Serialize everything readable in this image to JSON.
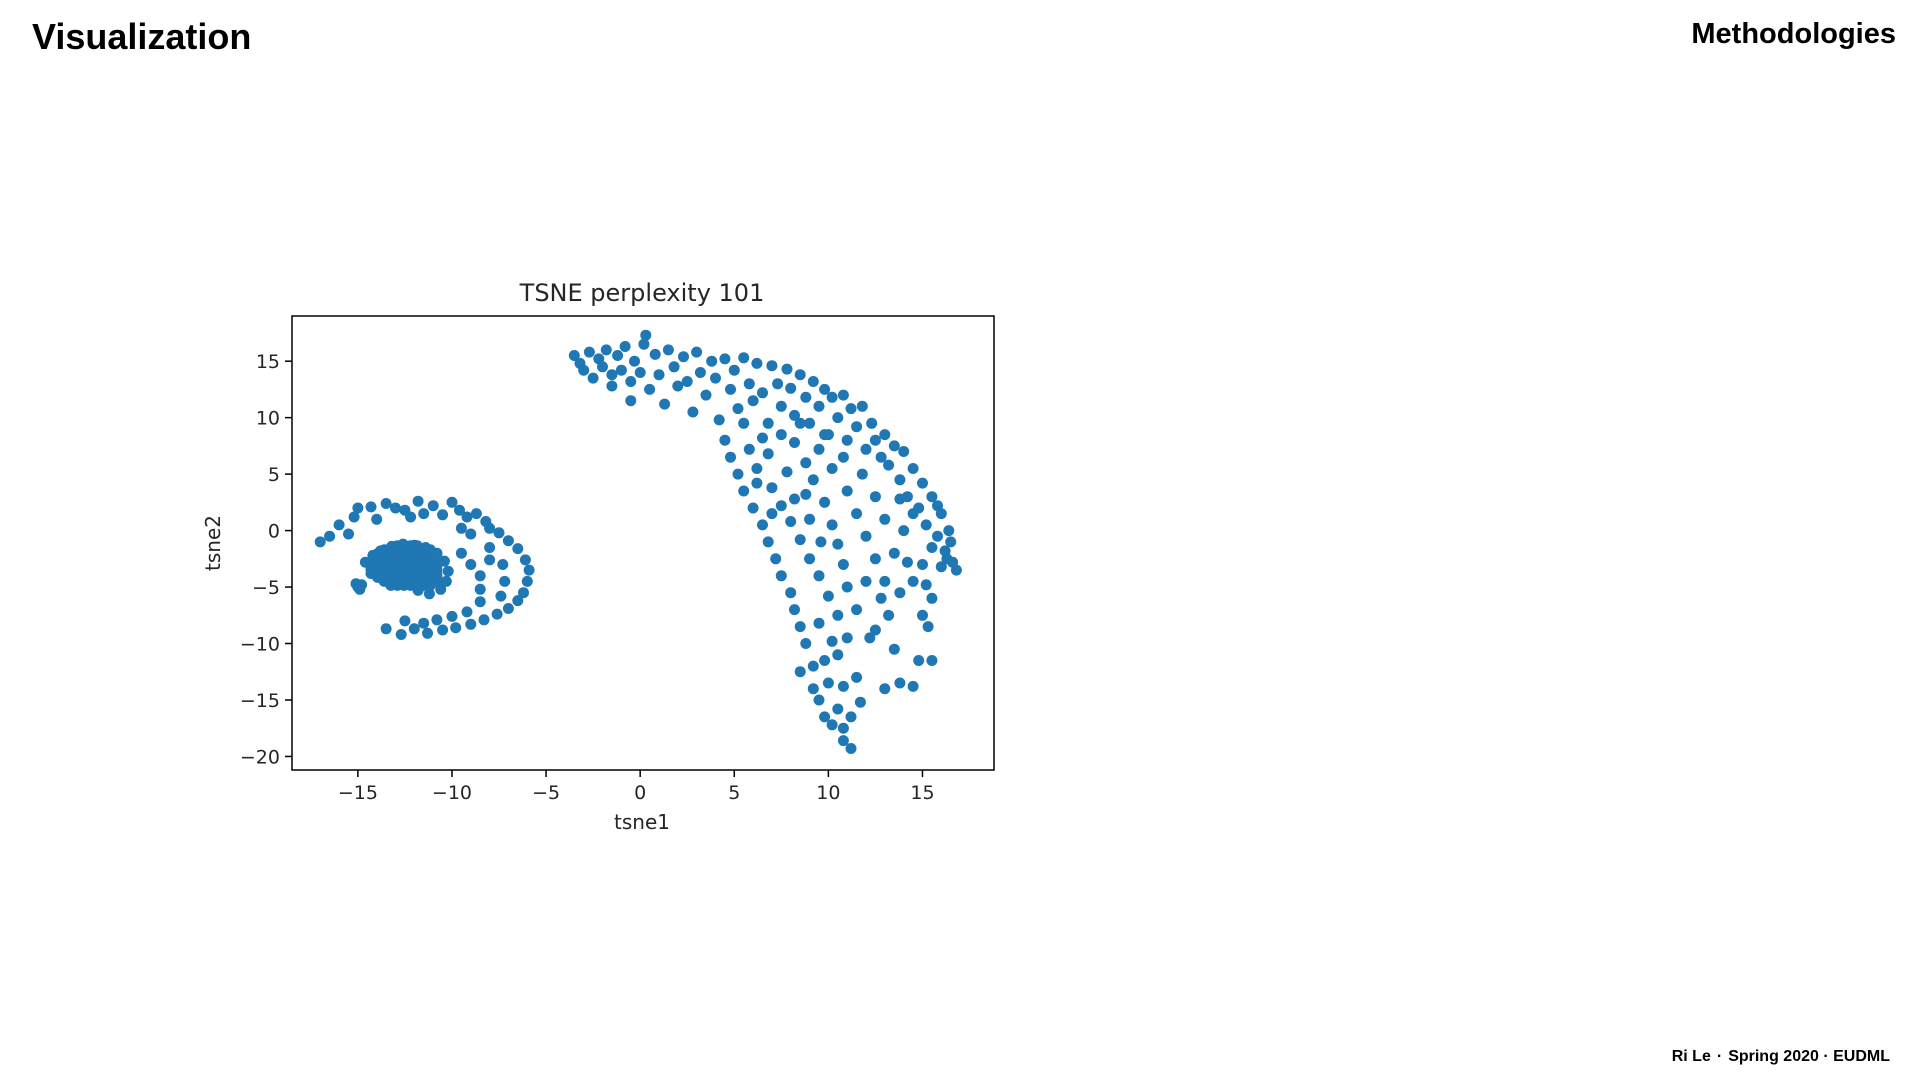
{
  "slide": {
    "title": "Visualization",
    "section": "Methodologies"
  },
  "footer": {
    "author": "Ri Le",
    "separator": "·",
    "term_venue": "Spring 2020 · EUDML"
  },
  "colors": {
    "points": "#1f77b4",
    "axes": "#000000",
    "text": "#262626"
  },
  "chart_data": {
    "type": "scatter",
    "title": "TSNE perplexity 101",
    "xlabel": "tsne1",
    "ylabel": "tsne2",
    "xlim": [
      -18.5,
      18.8
    ],
    "ylim": [
      -21.2,
      19.0
    ],
    "xticks": [
      -15,
      -10,
      -5,
      0,
      5,
      10,
      15
    ],
    "yticks": [
      15,
      10,
      5,
      0,
      -5,
      -10,
      -15,
      -20
    ],
    "xtick_labels": [
      "−15",
      "−10",
      "−5",
      "0",
      "5",
      "10",
      "15"
    ],
    "ytick_labels": [
      "15",
      "10",
      "5",
      "0",
      "−5",
      "−10",
      "−15",
      "−20"
    ],
    "grid": false,
    "legend": "none",
    "series": [
      {
        "points": [
          [
            -17,
            -1
          ],
          [
            -16.5,
            -0.5
          ],
          [
            -16,
            0.5
          ],
          [
            -15.5,
            -0.3
          ],
          [
            -15.2,
            1.2
          ],
          [
            -15,
            2
          ],
          [
            -14.3,
            2.1
          ],
          [
            -14,
            1
          ],
          [
            -13.5,
            2.4
          ],
          [
            -13,
            2
          ],
          [
            -12.5,
            1.8
          ],
          [
            -12.2,
            1.2
          ],
          [
            -11.8,
            2.6
          ],
          [
            -11.5,
            1.5
          ],
          [
            -11,
            2.2
          ],
          [
            -10.5,
            1.4
          ],
          [
            -10,
            2.5
          ],
          [
            -9.6,
            1.8
          ],
          [
            -9.2,
            1.2
          ],
          [
            -8.7,
            1.5
          ],
          [
            -8.2,
            0.8
          ],
          [
            -9.5,
            0.2
          ],
          [
            -9,
            -0.3
          ],
          [
            -8,
            0.2
          ],
          [
            -7.5,
            -0.2
          ],
          [
            -7,
            -0.9
          ],
          [
            -6.5,
            -1.6
          ],
          [
            -6.1,
            -2.6
          ],
          [
            -5.9,
            -3.5
          ],
          [
            -6,
            -4.5
          ],
          [
            -6.2,
            -5.5
          ],
          [
            -6.5,
            -6.2
          ],
          [
            -7,
            -6.9
          ],
          [
            -7.6,
            -7.4
          ],
          [
            -8.3,
            -7.9
          ],
          [
            -9,
            -8.3
          ],
          [
            -9.8,
            -8.6
          ],
          [
            -10.5,
            -8.8
          ],
          [
            -11.3,
            -9.1
          ],
          [
            -12,
            -8.7
          ],
          [
            -12.7,
            -9.2
          ],
          [
            -13.5,
            -8.7
          ],
          [
            -9.5,
            -2
          ],
          [
            -9,
            -3
          ],
          [
            -8.5,
            -4
          ],
          [
            -8.5,
            -5.2
          ],
          [
            -8.5,
            -6.3
          ],
          [
            -9.2,
            -7.2
          ],
          [
            -10,
            -7.6
          ],
          [
            -10.8,
            -7.9
          ],
          [
            -11.5,
            -8.2
          ],
          [
            -12.5,
            -8
          ],
          [
            -8,
            -1.5
          ],
          [
            -7.3,
            -3
          ],
          [
            -7.2,
            -4.5
          ],
          [
            -7.4,
            -5.8
          ],
          [
            -8,
            -2.6
          ],
          [
            -15,
            -5
          ],
          [
            -14.8,
            -4.8
          ],
          [
            -15.1,
            -4.7
          ],
          [
            -14.9,
            -5.2
          ],
          [
            -14.6,
            -2.8
          ],
          [
            -14.2,
            -2.2
          ],
          [
            -13.8,
            -1.8
          ],
          [
            -13.2,
            -1.4
          ],
          [
            -12.6,
            -1.2
          ],
          [
            -12,
            -1.3
          ],
          [
            -11.4,
            -1.5
          ],
          [
            -10.8,
            -2
          ],
          [
            -10.4,
            -2.7
          ],
          [
            -10.2,
            -3.6
          ],
          [
            -10.3,
            -4.5
          ],
          [
            -10.6,
            -5.2
          ],
          [
            -11.2,
            -5.6
          ],
          [
            -11.8,
            -5.3
          ],
          [
            -12.3,
            -4.6
          ],
          [
            -12.9,
            -3.9
          ],
          [
            -13.6,
            -3.3
          ],
          [
            -14.2,
            -3.1
          ],
          [
            -13.5,
            -2.5
          ],
          [
            -12.8,
            -2.1
          ],
          [
            -12.1,
            -2.2
          ],
          [
            -11.4,
            -2.4
          ],
          [
            -10.9,
            -3
          ],
          [
            -11.1,
            -3.9
          ],
          [
            -11.5,
            -4.6
          ],
          [
            -12.2,
            -3.3
          ],
          [
            -11.8,
            -3.2
          ],
          [
            -12.5,
            -2.8
          ],
          [
            -11.2,
            -2.7
          ],
          [
            -11.9,
            -4.2
          ],
          [
            -12.6,
            -3.6
          ],
          [
            -13.1,
            -2.9
          ],
          [
            -11.6,
            -3.6
          ],
          [
            -10.8,
            -4.1
          ],
          [
            -12.2,
            -2.6
          ],
          [
            -3.5,
            15.5
          ],
          [
            -3.2,
            14.8
          ],
          [
            -3,
            14.2
          ],
          [
            -2.7,
            15.8
          ],
          [
            -2.5,
            13.5
          ],
          [
            -2.2,
            15.2
          ],
          [
            -2,
            14.5
          ],
          [
            -1.8,
            16
          ],
          [
            -1.5,
            13.8
          ],
          [
            -1.5,
            12.8
          ],
          [
            -1.2,
            15.5
          ],
          [
            -1,
            14.2
          ],
          [
            -0.8,
            16.3
          ],
          [
            -0.5,
            13.2
          ],
          [
            -0.5,
            11.5
          ],
          [
            -0.3,
            15
          ],
          [
            0,
            14
          ],
          [
            0.2,
            16.5
          ],
          [
            0.3,
            17.3
          ],
          [
            0.5,
            12.5
          ],
          [
            0.8,
            15.6
          ],
          [
            1,
            13.8
          ],
          [
            1.3,
            11.2
          ],
          [
            1.5,
            16
          ],
          [
            1.8,
            14.5
          ],
          [
            2,
            12.8
          ],
          [
            2.3,
            15.4
          ],
          [
            2.5,
            13.2
          ],
          [
            2.8,
            10.5
          ],
          [
            3,
            15.8
          ],
          [
            3.2,
            14
          ],
          [
            3.5,
            12
          ],
          [
            3.8,
            15
          ],
          [
            4,
            13.5
          ],
          [
            4.2,
            9.8
          ],
          [
            4.5,
            15.2
          ],
          [
            4.8,
            12.5
          ],
          [
            5,
            14.2
          ],
          [
            5.2,
            10.8
          ],
          [
            5.5,
            15.3
          ],
          [
            5.8,
            13
          ],
          [
            6,
            11.5
          ],
          [
            6.2,
            14.8
          ],
          [
            6.5,
            12.2
          ],
          [
            6.8,
            9.5
          ],
          [
            7,
            14.6
          ],
          [
            7.3,
            13
          ],
          [
            7.5,
            11
          ],
          [
            7.8,
            14.3
          ],
          [
            8,
            12.6
          ],
          [
            8.2,
            10.2
          ],
          [
            8.5,
            13.8
          ],
          [
            8.8,
            11.8
          ],
          [
            9,
            9.5
          ],
          [
            9.2,
            13.2
          ],
          [
            9.5,
            11
          ],
          [
            9.8,
            12.5
          ],
          [
            10,
            8.5
          ],
          [
            10.2,
            11.8
          ],
          [
            10.5,
            10
          ],
          [
            10.8,
            12
          ],
          [
            11,
            8
          ],
          [
            11.2,
            10.8
          ],
          [
            11.5,
            9.2
          ],
          [
            11.8,
            11
          ],
          [
            12,
            7.2
          ],
          [
            12.3,
            9.5
          ],
          [
            12.5,
            8
          ],
          [
            12.8,
            6.5
          ],
          [
            13,
            8.5
          ],
          [
            13.2,
            5.8
          ],
          [
            13.5,
            7.5
          ],
          [
            13.8,
            4.5
          ],
          [
            14,
            7
          ],
          [
            14.2,
            3
          ],
          [
            14.5,
            5.5
          ],
          [
            14.8,
            2
          ],
          [
            15,
            4.2
          ],
          [
            15.2,
            0.5
          ],
          [
            15.5,
            3
          ],
          [
            15.8,
            -0.5
          ],
          [
            16,
            1.5
          ],
          [
            16.2,
            -1.8
          ],
          [
            16.4,
            0
          ],
          [
            16.6,
            -2.8
          ],
          [
            16.8,
            -3.5
          ],
          [
            16.3,
            -2.5
          ],
          [
            15.5,
            -1.5
          ],
          [
            15,
            -3
          ],
          [
            14.5,
            -4.5
          ],
          [
            15.5,
            -6
          ],
          [
            15,
            -7.5
          ],
          [
            15.3,
            -8.5
          ],
          [
            14.8,
            -11.5
          ],
          [
            15.5,
            -11.5
          ],
          [
            14.5,
            -13.8
          ],
          [
            13.8,
            -13.5
          ],
          [
            13,
            -14
          ],
          [
            13.5,
            -10.5
          ],
          [
            12.5,
            -8.8
          ],
          [
            13.2,
            -7.5
          ],
          [
            12.8,
            -6
          ],
          [
            12,
            -4.5
          ],
          [
            11.5,
            -7
          ],
          [
            11,
            -9.5
          ],
          [
            10.5,
            -11
          ],
          [
            11.5,
            -13
          ],
          [
            11.7,
            -15.2
          ],
          [
            11.2,
            -16.5
          ],
          [
            10.8,
            -17.5
          ],
          [
            10.8,
            -18.6
          ],
          [
            11.2,
            -19.3
          ],
          [
            10.2,
            -17.2
          ],
          [
            10.5,
            -15.8
          ],
          [
            9.8,
            -16.5
          ],
          [
            9.5,
            -15
          ],
          [
            10,
            -13.5
          ],
          [
            9.2,
            -12
          ],
          [
            8.8,
            -10
          ],
          [
            8.5,
            -8.5
          ],
          [
            8.2,
            -7
          ],
          [
            8,
            -5.5
          ],
          [
            7.5,
            -4
          ],
          [
            7.2,
            -2.5
          ],
          [
            6.8,
            -1
          ],
          [
            6.5,
            0.5
          ],
          [
            6,
            2
          ],
          [
            5.5,
            3.5
          ],
          [
            5.2,
            5
          ],
          [
            4.8,
            6.5
          ],
          [
            4.5,
            8
          ],
          [
            5.8,
            7.2
          ],
          [
            6.2,
            5.5
          ],
          [
            7,
            3.8
          ],
          [
            7.5,
            2.2
          ],
          [
            8,
            0.8
          ],
          [
            8.5,
            -0.8
          ],
          [
            9,
            -2.5
          ],
          [
            9.5,
            -4
          ],
          [
            10,
            -5.8
          ],
          [
            10.5,
            -7.5
          ],
          [
            11,
            -5
          ],
          [
            10.8,
            -3
          ],
          [
            10.5,
            -1.2
          ],
          [
            10.2,
            0.5
          ],
          [
            9.8,
            2.5
          ],
          [
            9.2,
            4.5
          ],
          [
            8.8,
            6
          ],
          [
            8.2,
            7.8
          ],
          [
            9.5,
            7.2
          ],
          [
            10.2,
            5.5
          ],
          [
            11,
            3.5
          ],
          [
            11.5,
            1.5
          ],
          [
            12,
            -0.5
          ],
          [
            12.5,
            -2.5
          ],
          [
            13,
            -4.5
          ],
          [
            13.5,
            -2
          ],
          [
            14,
            0
          ],
          [
            14.5,
            1.5
          ],
          [
            13.8,
            2.8
          ],
          [
            13,
            1
          ],
          [
            12.5,
            3
          ],
          [
            11.8,
            5
          ],
          [
            10.8,
            6.5
          ],
          [
            9.8,
            8.5
          ],
          [
            8.5,
            9.5
          ],
          [
            7.5,
            8.5
          ],
          [
            6.8,
            6.8
          ],
          [
            6.2,
            4.2
          ],
          [
            7,
            1.5
          ],
          [
            8.2,
            2.8
          ],
          [
            9,
            1
          ],
          [
            9.6,
            -1
          ],
          [
            8.8,
            3.2
          ],
          [
            7.8,
            5.2
          ],
          [
            6.5,
            8.2
          ],
          [
            5.5,
            9.5
          ],
          [
            12.2,
            -9.5
          ],
          [
            9.5,
            -8.2
          ],
          [
            10.2,
            -9.8
          ],
          [
            8.5,
            -12.5
          ],
          [
            9.8,
            -11.5
          ],
          [
            10.8,
            -13.8
          ],
          [
            9.2,
            -14
          ],
          [
            13.8,
            -5.5
          ],
          [
            14.2,
            -2.8
          ],
          [
            15.8,
            2.2
          ],
          [
            16.5,
            -1
          ],
          [
            16,
            -3.2
          ],
          [
            15.2,
            -4.8
          ]
        ]
      }
    ]
  }
}
